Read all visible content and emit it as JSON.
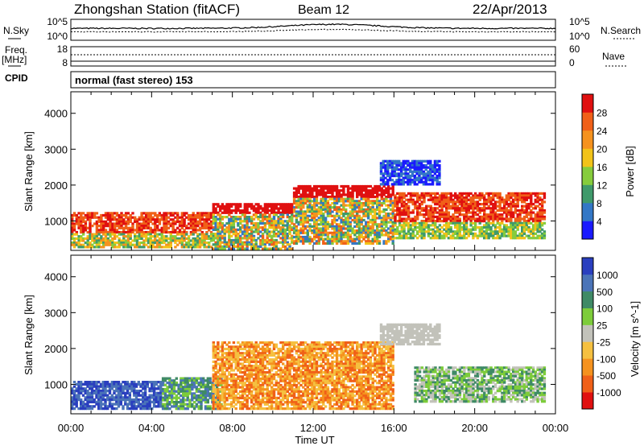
{
  "header": {
    "station": "Zhongshan Station (fitACF)",
    "beam": "Beam 12",
    "date": "22/Apr/2013"
  },
  "sky_panel": {
    "left_label": "N.Sky",
    "right_label": "N.Search",
    "left_ticks": [
      "10^5",
      "10^0"
    ],
    "right_ticks": [
      "10^5",
      "10^0"
    ]
  },
  "freq_panel": {
    "left_label_1": "Freq.",
    "left_label_2": "[MHz]",
    "right_label": "Nave",
    "left_ticks": [
      "18",
      "8"
    ],
    "right_ticks": [
      "60",
      "0"
    ]
  },
  "cpid_panel": {
    "label": "CPID",
    "text": "normal (fast stereo) 153"
  },
  "time_axis": {
    "label": "Time UT",
    "ticks": [
      "00:00",
      "04:00",
      "08:00",
      "12:00",
      "16:00",
      "20:00",
      "00:00"
    ]
  },
  "chart_data": [
    {
      "type": "heatmap",
      "title": "",
      "xlabel": "",
      "ylabel": "Slant Range [km]",
      "x_range": [
        "00:00",
        "24:00"
      ],
      "ylim": [
        180,
        4600
      ],
      "y_ticks": [
        1000,
        2000,
        3000,
        4000
      ],
      "colorbar": {
        "label": "Power [dB]",
        "ticks": [
          "4",
          "8",
          "12",
          "16",
          "20",
          "24",
          "28"
        ],
        "colors": [
          "#1a1aff",
          "#3377c6",
          "#3f9a6b",
          "#86cc3c",
          "#f2c319",
          "#f5921e",
          "#f06018",
          "#e01010"
        ]
      },
      "regions": [
        {
          "t": [
            0.0,
            7.0
          ],
          "r": [
            250,
            1250
          ],
          "value": "red-orange core near 500-800 km"
        },
        {
          "t": [
            7.0,
            11.0
          ],
          "r": [
            200,
            1500
          ],
          "value": "green/orange with red base"
        },
        {
          "t": [
            11.0,
            16.0
          ],
          "r": [
            350,
            2000
          ],
          "value": "mixed green/orange streaks"
        },
        {
          "t": [
            15.3,
            18.3
          ],
          "r": [
            2000,
            2700
          ],
          "value": "blue patch"
        },
        {
          "t": [
            16.0,
            23.5
          ],
          "r": [
            500,
            1800
          ],
          "value": "red/orange band rising to 1200 km"
        }
      ]
    },
    {
      "type": "heatmap",
      "title": "",
      "xlabel": "Time UT",
      "ylabel": "Slant Range [km]",
      "x_range": [
        "00:00",
        "24:00"
      ],
      "ylim": [
        180,
        4600
      ],
      "y_ticks": [
        1000,
        2000,
        3000,
        4000
      ],
      "colorbar": {
        "label": "Velocity [m s^-1]",
        "ticks": [
          "1000",
          "500",
          "100",
          "25",
          "-25",
          "-100",
          "-500",
          "-1000"
        ],
        "colors": [
          "#2a3fbf",
          "#4b74b8",
          "#3f8a66",
          "#7dcc3a",
          "#c2c2ba",
          "#f5c040",
          "#f5921e",
          "#f06018",
          "#e01010"
        ]
      },
      "regions": [
        {
          "t": [
            0.0,
            4.5
          ],
          "r": [
            300,
            1100
          ],
          "value": "blue (positive velocity)"
        },
        {
          "t": [
            4.5,
            7.5
          ],
          "r": [
            300,
            1200
          ],
          "value": "green/blue mixed"
        },
        {
          "t": [
            7.0,
            16.0
          ],
          "r": [
            300,
            2200
          ],
          "value": "orange (negative velocity)"
        },
        {
          "t": [
            15.3,
            18.3
          ],
          "r": [
            2100,
            2700
          ],
          "value": "grey (near zero)"
        },
        {
          "t": [
            17.0,
            23.5
          ],
          "r": [
            500,
            1500
          ],
          "value": "green/teal band"
        }
      ]
    }
  ]
}
